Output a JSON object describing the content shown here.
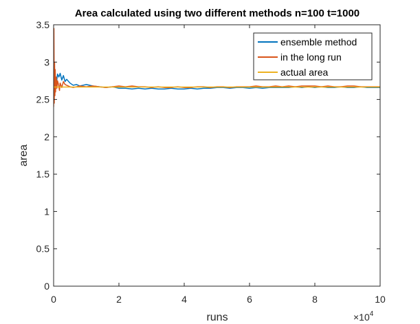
{
  "chart_data": {
    "type": "line",
    "title": "Area calculated using two different methods n=100  t=1000",
    "xlabel": "runs",
    "ylabel": "area",
    "x_exponent_base": "×10",
    "x_exponent_power": "4",
    "xlim": [
      0,
      100000
    ],
    "ylim": [
      0,
      3.5
    ],
    "x_ticks": [
      0,
      20000,
      40000,
      60000,
      80000,
      100000
    ],
    "x_tick_labels": [
      "0",
      "2",
      "4",
      "6",
      "8",
      "10"
    ],
    "y_ticks": [
      0,
      0.5,
      1,
      1.5,
      2,
      2.5,
      3,
      3.5
    ],
    "y_tick_labels": [
      "0",
      "0.5",
      "1",
      "1.5",
      "2",
      "2.5",
      "3",
      "3.5"
    ],
    "grid": false,
    "legend_position": "top-right",
    "series": [
      {
        "name": "ensemble method",
        "color": "#0072BD",
        "x": [
          0,
          200,
          500,
          800,
          1200,
          1600,
          2000,
          2500,
          3000,
          3500,
          4000,
          5000,
          6000,
          7000,
          8000,
          9000,
          10000,
          12000,
          14000,
          16000,
          18000,
          20000,
          22000,
          24000,
          26000,
          28000,
          30000,
          32000,
          34000,
          36000,
          38000,
          40000,
          42000,
          44000,
          46000,
          48000,
          50000,
          52000,
          54000,
          56000,
          58000,
          60000,
          62000,
          64000,
          66000,
          68000,
          70000,
          72000,
          74000,
          76000,
          78000,
          80000,
          82000,
          84000,
          86000,
          88000,
          90000,
          92000,
          94000,
          96000,
          98000,
          100000
        ],
        "values": [
          2.62,
          2.72,
          2.78,
          2.7,
          2.84,
          2.8,
          2.85,
          2.76,
          2.82,
          2.74,
          2.77,
          2.72,
          2.69,
          2.7,
          2.68,
          2.69,
          2.7,
          2.68,
          2.67,
          2.66,
          2.67,
          2.65,
          2.65,
          2.64,
          2.65,
          2.64,
          2.65,
          2.64,
          2.64,
          2.65,
          2.64,
          2.64,
          2.65,
          2.64,
          2.65,
          2.65,
          2.66,
          2.66,
          2.65,
          2.66,
          2.66,
          2.65,
          2.66,
          2.65,
          2.66,
          2.66,
          2.66,
          2.66,
          2.67,
          2.66,
          2.67,
          2.66,
          2.67,
          2.66,
          2.66,
          2.67,
          2.66,
          2.66,
          2.67,
          2.66,
          2.66,
          2.66
        ]
      },
      {
        "name": "in the long run",
        "color": "#D95319",
        "x": [
          0,
          100,
          200,
          300,
          400,
          500,
          600,
          800,
          1000,
          1200,
          1500,
          1800,
          2000,
          2500,
          3000,
          3500,
          4000,
          5000,
          6000,
          8000,
          10000,
          12000,
          14000,
          16000,
          18000,
          20000,
          22000,
          24000,
          26000,
          28000,
          30000,
          32000,
          34000,
          36000,
          38000,
          40000,
          42000,
          44000,
          46000,
          48000,
          50000,
          52000,
          54000,
          56000,
          58000,
          60000,
          62000,
          64000,
          66000,
          68000,
          70000,
          72000,
          74000,
          76000,
          78000,
          80000,
          82000,
          84000,
          86000,
          88000,
          90000,
          92000,
          94000,
          96000,
          98000,
          100000
        ],
        "values": [
          2.4,
          3.45,
          2.45,
          3.0,
          2.55,
          2.9,
          2.6,
          2.8,
          2.65,
          2.75,
          2.7,
          2.62,
          2.72,
          2.66,
          2.74,
          2.7,
          2.69,
          2.67,
          2.66,
          2.68,
          2.67,
          2.68,
          2.67,
          2.66,
          2.67,
          2.68,
          2.67,
          2.68,
          2.67,
          2.67,
          2.66,
          2.67,
          2.66,
          2.66,
          2.67,
          2.66,
          2.66,
          2.67,
          2.67,
          2.66,
          2.67,
          2.67,
          2.66,
          2.67,
          2.67,
          2.67,
          2.68,
          2.67,
          2.67,
          2.68,
          2.67,
          2.68,
          2.67,
          2.68,
          2.68,
          2.68,
          2.67,
          2.68,
          2.67,
          2.67,
          2.68,
          2.68,
          2.67,
          2.67,
          2.67,
          2.67
        ]
      },
      {
        "name": "actual area",
        "color": "#EDB120",
        "x": [
          0,
          100000
        ],
        "values": [
          2.666,
          2.666
        ]
      }
    ]
  }
}
